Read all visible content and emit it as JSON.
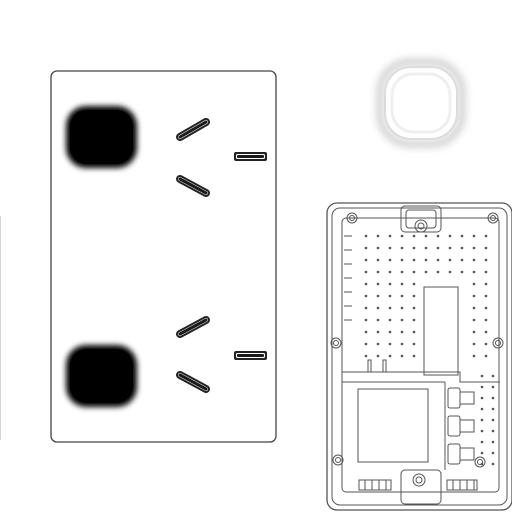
{
  "scene": {
    "background_color": "#ffffff",
    "line_color": "#444444",
    "slot_color": "#1a1a1a",
    "blackout_color": "#000000"
  },
  "socket_plate": {
    "icon": "double-power-outlet-plate-icon",
    "outlets": [
      {
        "icon": "outlet-upper-icon",
        "pins": [
          "active-pin-icon",
          "neutral-pin-icon",
          "earth-pin-icon"
        ]
      },
      {
        "icon": "outlet-lower-icon",
        "pins": [
          "active-pin-icon",
          "neutral-pin-icon",
          "earth-pin-icon"
        ]
      }
    ]
  },
  "small_button": {
    "icon": "rounded-square-button-icon"
  },
  "backplate": {
    "icon": "outlet-rear-housing-icon"
  }
}
